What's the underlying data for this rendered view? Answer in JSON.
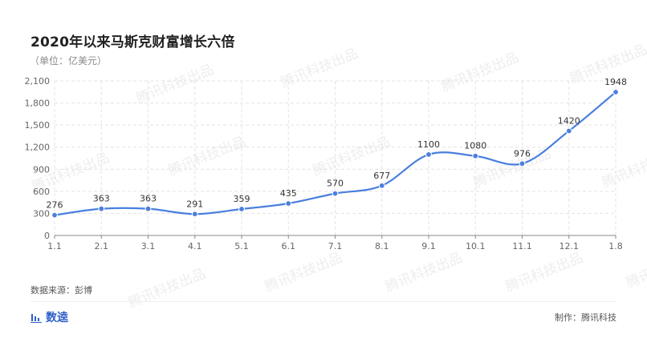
{
  "title": "2020年以来马斯克财富增长六倍",
  "unit_label": "（单位：亿美元）",
  "source": "数据来源：彭博",
  "brand": "数逵",
  "credit": "制作：腾讯科技",
  "watermark": "腾讯科技出品",
  "colors": {
    "line": "#4a7fde",
    "grid": "#e3e3e3",
    "axis": "#888888",
    "brand": "#2d5ec9"
  },
  "chart_data": {
    "type": "line",
    "title": "2020年以来马斯克财富增长六倍",
    "xlabel": "",
    "ylabel": "（单位：亿美元）",
    "grid": true,
    "smooth": true,
    "ylim": [
      0,
      2100
    ],
    "yticks": [
      0,
      300,
      600,
      900,
      1200,
      1500,
      1800,
      2100
    ],
    "ytick_labels": [
      "0",
      "300",
      "600",
      "900",
      "1,200",
      "1,500",
      "1,800",
      "2,100"
    ],
    "categories": [
      "1.1",
      "2.1",
      "3.1",
      "4.1",
      "5.1",
      "6.1",
      "7.1",
      "8.1",
      "9.1",
      "10.1",
      "11.1",
      "12.1",
      "1.8"
    ],
    "series": [
      {
        "values": [
          276,
          363,
          363,
          291,
          359,
          435,
          570,
          677,
          1100,
          1080,
          976,
          1420,
          1948
        ]
      }
    ]
  }
}
